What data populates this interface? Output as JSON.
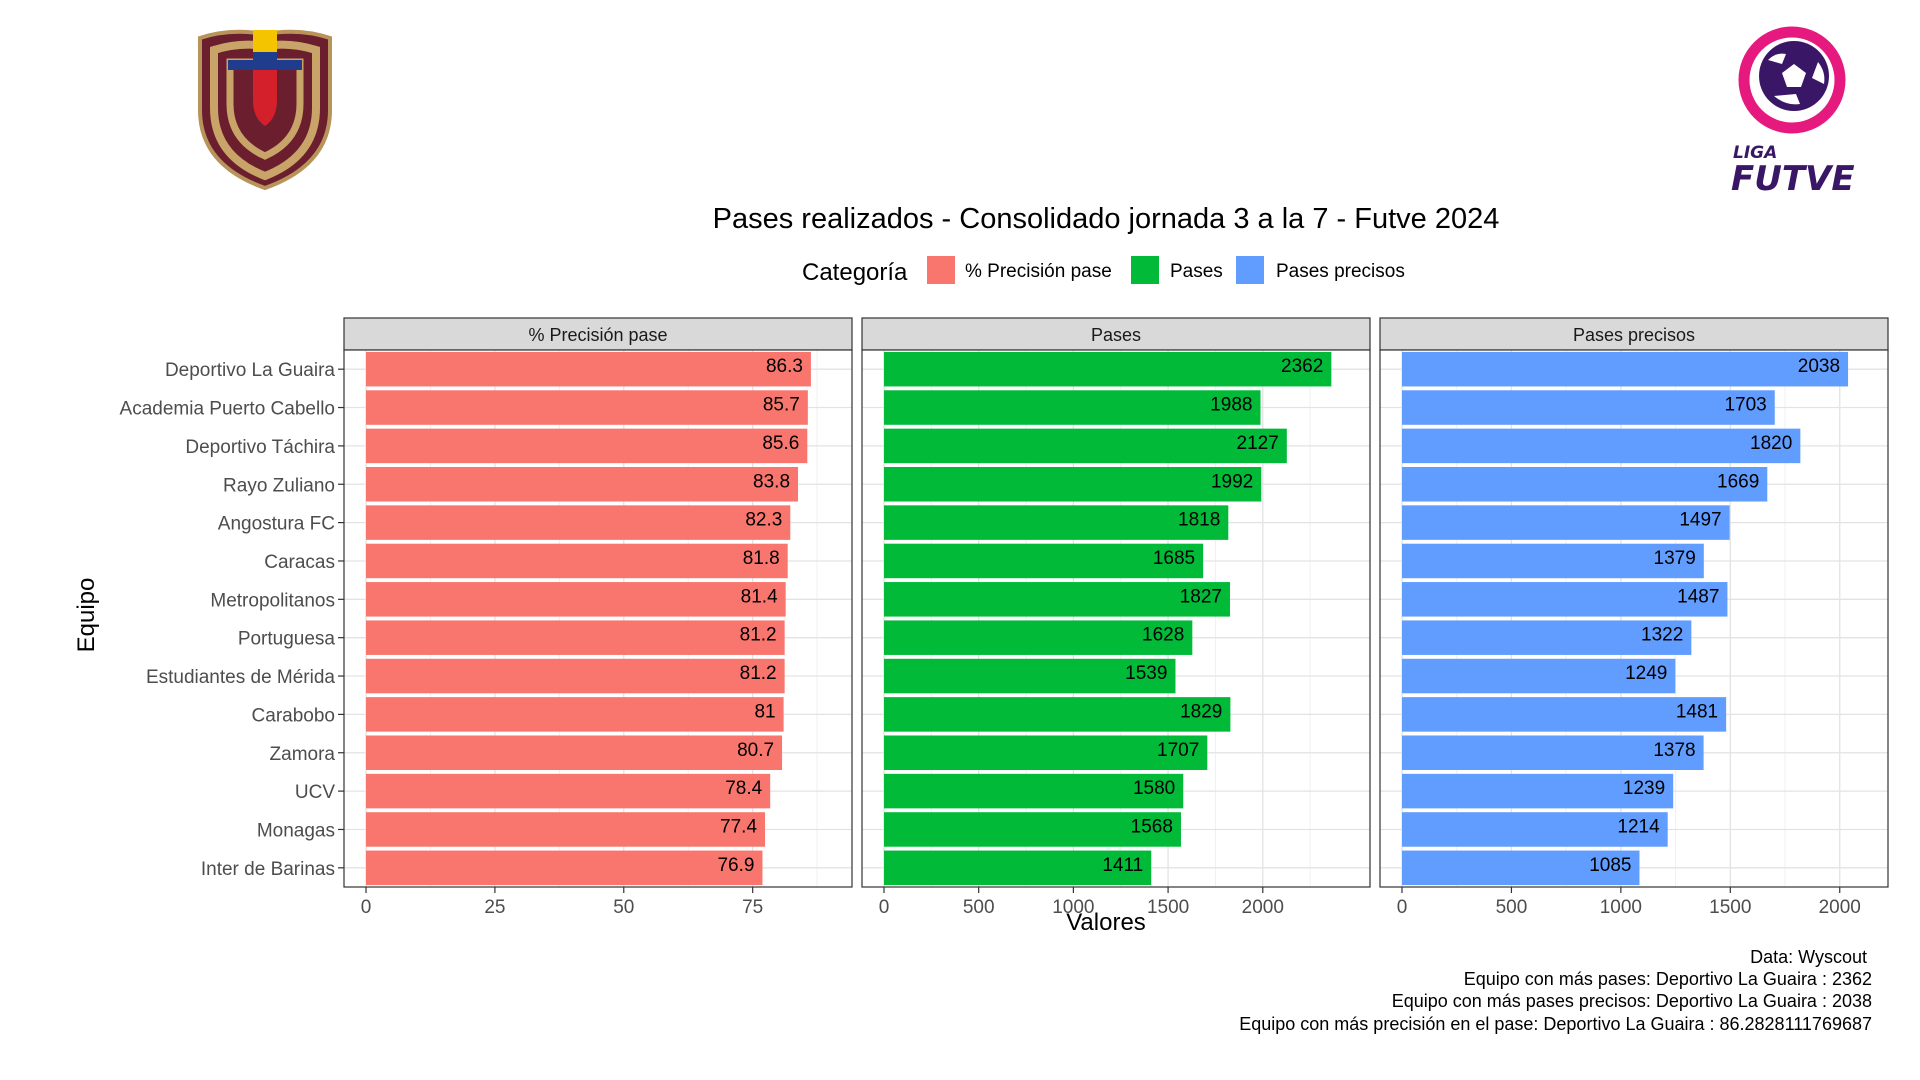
{
  "title": "Pases realizados - Consolidado jornada 3 a la 7 - Futve 2024",
  "legend": {
    "title": "Categoría",
    "items": [
      {
        "label": "% Precisión pase",
        "color": "#F8766D"
      },
      {
        "label": "Pases",
        "color": "#00BA38"
      },
      {
        "label": "Pases precisos",
        "color": "#619CFF"
      }
    ]
  },
  "axes": {
    "ylabel": "Equipo",
    "xlabel": "Valores"
  },
  "logos": {
    "left": "crest-icon",
    "right_line1": "LIGA",
    "right_line2": "FUTVE",
    "right_icon": "football-icon"
  },
  "caption": [
    "Data: Wyscout ",
    "Equipo con más pases: Deportivo La Guaira : 2362",
    "Equipo con más pases precisos: Deportivo La Guaira : 2038",
    "Equipo con más precisión en el pase: Deportivo La Guaira : 86.2828111769687"
  ],
  "chart_data": {
    "type": "bar",
    "orientation": "horizontal",
    "categories": [
      "Deportivo La Guaira",
      "Academia Puerto Cabello",
      "Deportivo Táchira",
      "Rayo Zuliano",
      "Angostura FC",
      "Caracas",
      "Metropolitanos",
      "Portuguesa",
      "Estudiantes de Mérida",
      "Carabobo",
      "Zamora",
      "UCV",
      "Monagas",
      "Inter de Barinas"
    ],
    "panels": [
      {
        "name": "% Precisión pase",
        "color": "#F8766D",
        "xlim": [
          0,
          90
        ],
        "ticks": [
          0,
          25,
          50,
          75
        ],
        "values": [
          86.3,
          85.7,
          85.6,
          83.8,
          82.3,
          81.8,
          81.4,
          81.2,
          81.2,
          81,
          80.7,
          78.4,
          77.4,
          76.9
        ],
        "labels": [
          "86.3",
          "85.7",
          "85.6",
          "83.8",
          "82.3",
          "81.8",
          "81.4",
          "81.2",
          "81.2",
          "81",
          "80.7",
          "78.4",
          "77.4",
          "76.9"
        ]
      },
      {
        "name": "Pases",
        "color": "#00BA38",
        "xlim": [
          0,
          2450
        ],
        "ticks": [
          0,
          500,
          1000,
          1500,
          2000
        ],
        "values": [
          2362,
          1988,
          2127,
          1992,
          1818,
          1685,
          1827,
          1628,
          1539,
          1829,
          1707,
          1580,
          1568,
          1411
        ],
        "labels": [
          "2362",
          "1988",
          "2127",
          "1992",
          "1818",
          "1685",
          "1827",
          "1628",
          "1539",
          "1829",
          "1707",
          "1580",
          "1568",
          "1411"
        ]
      },
      {
        "name": "Pases precisos",
        "color": "#619CFF",
        "xlim": [
          0,
          2120
        ],
        "ticks": [
          0,
          500,
          1000,
          1500,
          2000
        ],
        "values": [
          2038,
          1703,
          1820,
          1669,
          1497,
          1379,
          1487,
          1322,
          1249,
          1481,
          1378,
          1239,
          1214,
          1085
        ],
        "labels": [
          "2038",
          "1703",
          "1820",
          "1669",
          "1497",
          "1379",
          "1487",
          "1322",
          "1249",
          "1481",
          "1378",
          "1239",
          "1214",
          "1085"
        ]
      }
    ],
    "grid": true,
    "legend_position": "top"
  }
}
